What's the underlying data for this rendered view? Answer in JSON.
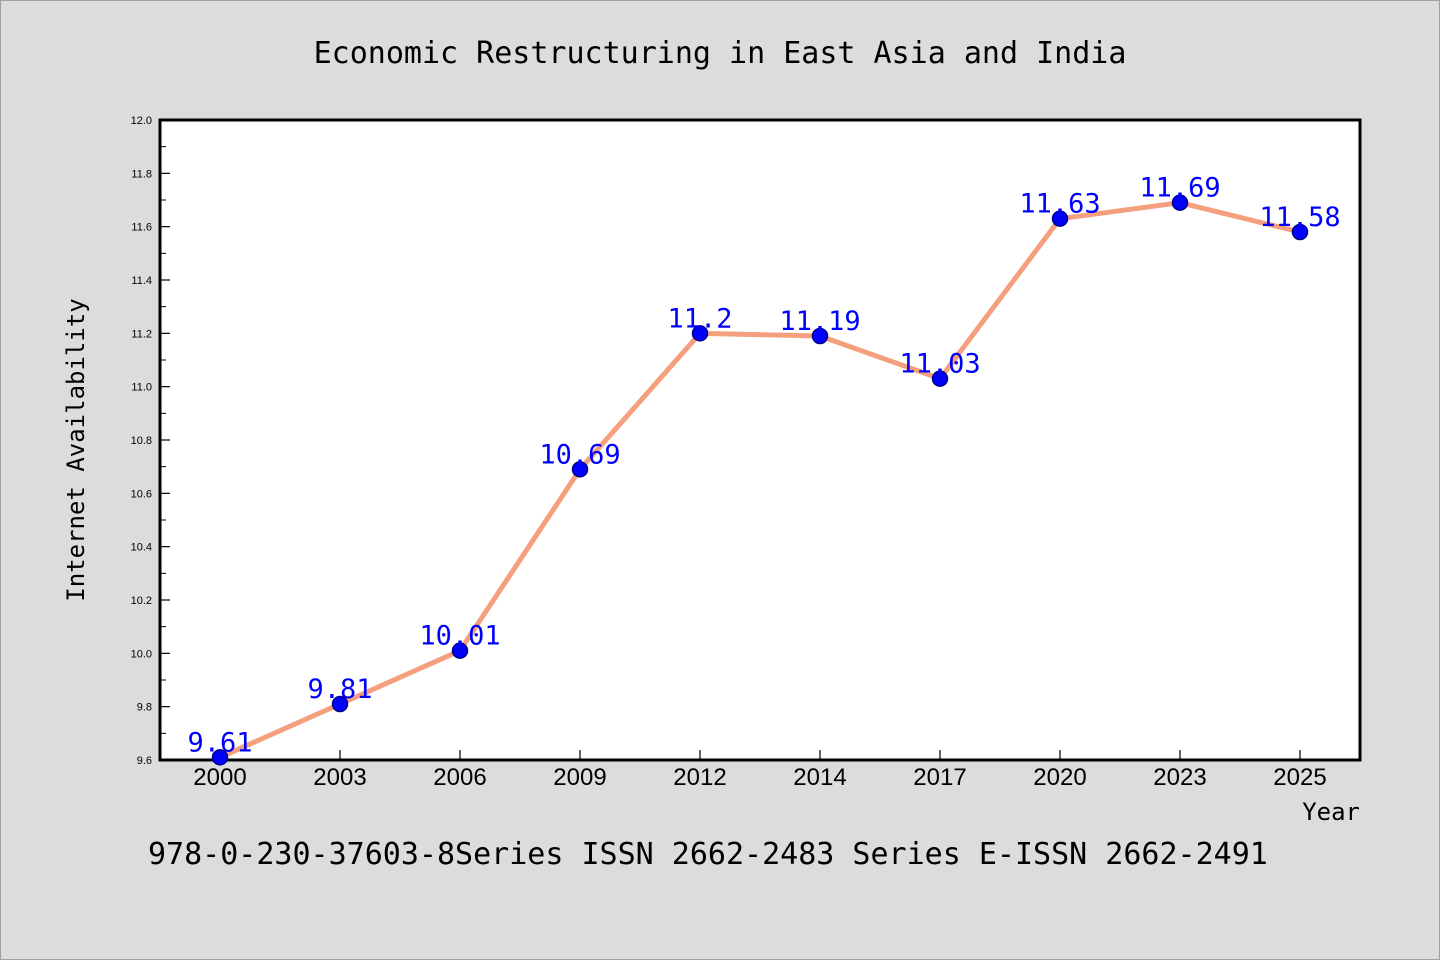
{
  "chart_data": {
    "type": "line",
    "title": "Economic Restructuring in East Asia and India",
    "xlabel": "Year",
    "ylabel": "Internet Availability",
    "categories": [
      "2000",
      "2003",
      "2006",
      "2009",
      "2012",
      "2014",
      "2017",
      "2020",
      "2023",
      "2025"
    ],
    "series": [
      {
        "values": [
          9.61,
          9.81,
          10.01,
          10.69,
          11.2,
          11.19,
          11.03,
          11.63,
          11.69,
          11.58
        ]
      }
    ],
    "data_labels": [
      "9.61",
      "9.81",
      "10.01",
      "10.69",
      "11.2",
      "11.19",
      "11.03",
      "11.63",
      "11.69",
      "11.58"
    ],
    "ylim": [
      9.6,
      12.0
    ],
    "yticks": [
      "9.6",
      "9.8",
      "10.0",
      "10.2",
      "10.4",
      "10.6",
      "10.8",
      "11.0",
      "11.2",
      "11.4",
      "11.6",
      "11.8",
      "12.0"
    ],
    "grid": false,
    "legend": "none",
    "colors": {
      "line": "#f4a07e",
      "marker": "#0000ff",
      "label": "#0000ff",
      "background": "#dcdcdc",
      "plot": "#ffffff"
    }
  },
  "footer": "978-0-230-37603-8Series ISSN 2662-2483 Series E-ISSN 2662-2491"
}
